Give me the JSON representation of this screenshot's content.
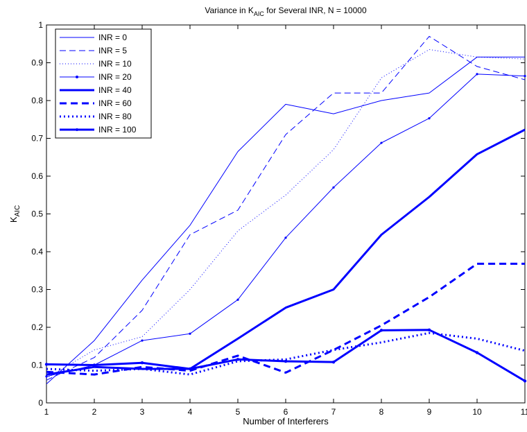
{
  "chart_data": {
    "type": "line",
    "title_main": "Variance in K",
    "title_sub": "AIC",
    "title_rest": " for Several INR, N = 10000",
    "xlabel": "Number of Interferers",
    "ylabel_main": "K",
    "ylabel_sub": "AIC",
    "xlim": [
      1,
      11
    ],
    "ylim": [
      0,
      1
    ],
    "xticks": [
      "1",
      "2",
      "3",
      "4",
      "5",
      "6",
      "7",
      "8",
      "9",
      "10",
      "11"
    ],
    "yticks": [
      "0",
      "0.1",
      "0.2",
      "0.3",
      "0.4",
      "0.5",
      "0.6",
      "0.7",
      "0.8",
      "0.9",
      "1"
    ],
    "grid": false,
    "legend_position": "top-left",
    "color": "#0000ff",
    "x": [
      1,
      2,
      3,
      4,
      5,
      6,
      7,
      8,
      9,
      10,
      11
    ],
    "series": [
      {
        "name": "INR = 0",
        "style": "solid-thin",
        "values": [
          0.05,
          0.165,
          0.325,
          0.47,
          0.665,
          0.79,
          0.765,
          0.8,
          0.82,
          0.915,
          0.915
        ]
      },
      {
        "name": "INR = 5",
        "style": "dashed-thin",
        "values": [
          0.06,
          0.12,
          0.245,
          0.445,
          0.51,
          0.71,
          0.82,
          0.82,
          0.97,
          0.89,
          0.855
        ]
      },
      {
        "name": "INR = 10",
        "style": "dotted-thin",
        "values": [
          0.065,
          0.14,
          0.175,
          0.3,
          0.455,
          0.55,
          0.67,
          0.86,
          0.935,
          0.915,
          0.91
        ]
      },
      {
        "name": "INR = 20",
        "style": "solid-thin-dot",
        "values": [
          0.07,
          0.1,
          0.165,
          0.183,
          0.273,
          0.437,
          0.57,
          0.688,
          0.753,
          0.87,
          0.865
        ]
      },
      {
        "name": "INR = 40",
        "style": "solid-thick",
        "values": [
          0.075,
          0.095,
          0.09,
          0.09,
          0.17,
          0.252,
          0.3,
          0.445,
          0.545,
          0.658,
          0.723
        ]
      },
      {
        "name": "INR = 60",
        "style": "dashed-thick",
        "values": [
          0.082,
          0.075,
          0.095,
          0.085,
          0.125,
          0.08,
          0.14,
          0.205,
          0.28,
          0.368,
          0.368
        ]
      },
      {
        "name": "INR = 80",
        "style": "dotted-thick",
        "values": [
          0.09,
          0.085,
          0.09,
          0.075,
          0.11,
          0.115,
          0.14,
          0.16,
          0.185,
          0.17,
          0.138
        ]
      },
      {
        "name": "INR = 100",
        "style": "solid-thick-dot",
        "values": [
          0.102,
          0.1,
          0.106,
          0.09,
          0.115,
          0.11,
          0.108,
          0.192,
          0.193,
          0.133,
          0.058
        ]
      }
    ]
  }
}
